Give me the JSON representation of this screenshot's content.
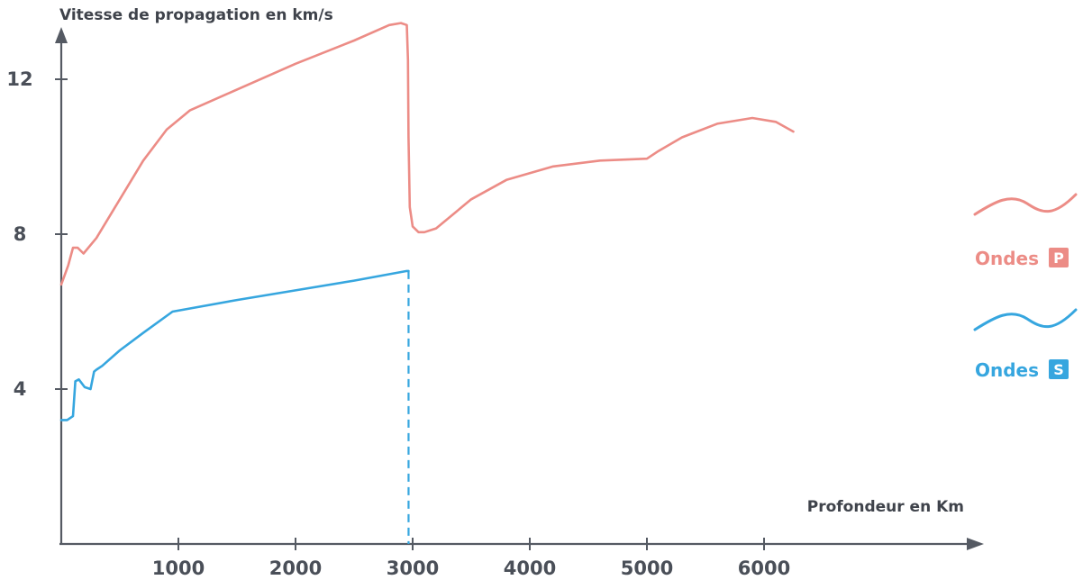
{
  "chart_data": {
    "type": "line",
    "title": "",
    "ylabel": "Vitesse de propagation en km/s",
    "xlabel": "Profondeur en Km",
    "xlim": [
      0,
      7600
    ],
    "ylim": [
      0,
      13.5
    ],
    "x_ticks": [
      1000,
      2000,
      3000,
      4000,
      5000,
      6000
    ],
    "x_tick_labels": [
      "1000",
      "2000",
      "3000",
      "4000",
      "5000",
      "6000"
    ],
    "y_ticks": [
      4,
      8,
      12
    ],
    "y_tick_labels": [
      "4",
      "8",
      "12"
    ],
    "grid": false,
    "legend_position": "right",
    "series": [
      {
        "name": "Ondes P",
        "badge": "P",
        "color": "#ec8c86",
        "x": [
          0,
          60,
          100,
          140,
          190,
          300,
          500,
          700,
          900,
          1100,
          1400,
          2000,
          2500,
          2800,
          2900,
          2950,
          2960,
          2965,
          2975,
          3000,
          3050,
          3100,
          3200,
          3500,
          3800,
          4200,
          4600,
          5000,
          5100,
          5300,
          5600,
          5900,
          6100,
          6250
        ],
        "y": [
          6.7,
          7.2,
          7.65,
          7.65,
          7.5,
          7.9,
          8.9,
          9.9,
          10.7,
          11.2,
          11.6,
          12.4,
          13.0,
          13.4,
          13.45,
          13.4,
          12.5,
          10.5,
          8.7,
          8.2,
          8.05,
          8.05,
          8.15,
          8.9,
          9.4,
          9.75,
          9.9,
          9.95,
          10.15,
          10.5,
          10.85,
          11.0,
          10.9,
          10.65
        ]
      },
      {
        "name": "Ondes S",
        "badge": "S",
        "color": "#36a6df",
        "x": [
          0,
          50,
          100,
          120,
          150,
          200,
          250,
          280,
          300,
          350,
          500,
          700,
          950,
          1500,
          2000,
          2500,
          2950,
          2965
        ],
        "y": [
          3.2,
          3.2,
          3.3,
          4.2,
          4.25,
          4.05,
          4.0,
          4.45,
          4.5,
          4.6,
          5.0,
          5.45,
          6.0,
          6.3,
          6.55,
          6.8,
          7.05,
          7.05
        ],
        "dashed_drop": {
          "x": 2965,
          "from": 7.05,
          "to": 0
        }
      }
    ]
  }
}
